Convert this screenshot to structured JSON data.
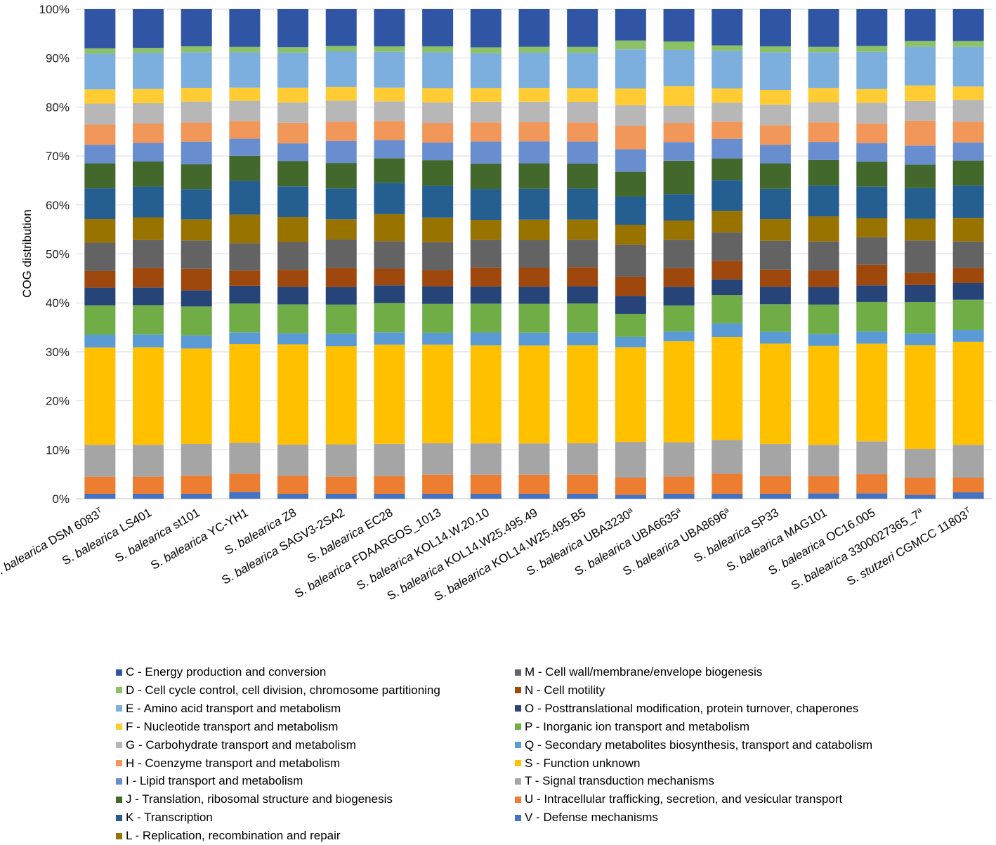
{
  "chart_data": {
    "type": "bar",
    "stacked": true,
    "percent": true,
    "ylabel": "COG distribution",
    "xlabel": "",
    "ylim": [
      0,
      100
    ],
    "yticks": [
      "0%",
      "10%",
      "20%",
      "30%",
      "40%",
      "50%",
      "60%",
      "70%",
      "80%",
      "90%",
      "100%"
    ],
    "categories": [
      {
        "genus": "S. ",
        "species": "balearica",
        "strain": " DSM 6083",
        "sup": "T"
      },
      {
        "genus": "S. ",
        "species": "balearica",
        "strain": " LS401",
        "sup": ""
      },
      {
        "genus": "S. ",
        "species": "balearica",
        "strain": " st101",
        "sup": ""
      },
      {
        "genus": "S. ",
        "species": "balearica",
        "strain": " YC-YH1",
        "sup": ""
      },
      {
        "genus": "S. ",
        "species": "balearica",
        "strain": " Z8",
        "sup": ""
      },
      {
        "genus": "S. ",
        "species": "balearica",
        "strain": " SAGV3-2SA2",
        "sup": ""
      },
      {
        "genus": "S. ",
        "species": "balearica",
        "strain": " EC28",
        "sup": ""
      },
      {
        "genus": "S. ",
        "species": "balearica",
        "strain": " FDAARGOS_1013",
        "sup": ""
      },
      {
        "genus": "S. ",
        "species": "balearica",
        "strain": " KOL14.W.20.10",
        "sup": ""
      },
      {
        "genus": "S. ",
        "species": "balearica",
        "strain": " KOL14.W25.495.49",
        "sup": ""
      },
      {
        "genus": "S. ",
        "species": "balearica",
        "strain": " KOL14.W25.495.B5",
        "sup": ""
      },
      {
        "genus": "S. ",
        "species": "balearica",
        "strain": " UBA3230",
        "sup": "a"
      },
      {
        "genus": "S. ",
        "species": "balearica",
        "strain": " UBA6635",
        "sup": "a"
      },
      {
        "genus": "S. ",
        "species": "balearica",
        "strain": " UBA8696",
        "sup": "a"
      },
      {
        "genus": "S. ",
        "species": "balearica",
        "strain": " SP33",
        "sup": ""
      },
      {
        "genus": "S. ",
        "species": "balearica",
        "strain": " MAG101",
        "sup": ""
      },
      {
        "genus": "S. ",
        "species": "balearica",
        "strain": " OC16.005",
        "sup": ""
      },
      {
        "genus": "S. ",
        "species": "balearica",
        "strain": " 3300027365_7",
        "sup": "a"
      },
      {
        "genus": "S. ",
        "species": "stutzeri",
        "strain": " CGMCC 11803",
        "sup": "T"
      }
    ],
    "series": [
      {
        "key": "V",
        "name": "V - Defense mechanisms",
        "color": "#4472C4",
        "values": [
          1.0,
          1.0,
          1.0,
          1.4,
          1.0,
          1.0,
          1.0,
          1.0,
          1.0,
          1.0,
          1.0,
          0.8,
          1.0,
          1.0,
          1.0,
          1.1,
          1.1,
          0.8,
          1.3
        ]
      },
      {
        "key": "U",
        "name": "U - Intracellular trafficking, secretion, and vesicular transport",
        "color": "#ED7D31",
        "values": [
          3.5,
          3.5,
          3.7,
          3.7,
          3.7,
          3.5,
          3.6,
          3.9,
          3.9,
          3.9,
          3.9,
          3.5,
          3.5,
          4.1,
          3.6,
          3.5,
          3.9,
          3.5,
          3.0
        ]
      },
      {
        "key": "T",
        "name": "T - Signal transduction mechanisms",
        "color": "#A5A5A5",
        "values": [
          6.5,
          6.5,
          6.5,
          6.3,
          6.4,
          6.6,
          6.6,
          6.4,
          6.4,
          6.4,
          6.4,
          7.3,
          7.0,
          6.9,
          6.6,
          6.4,
          6.7,
          5.9,
          6.7
        ]
      },
      {
        "key": "S",
        "name": "S - Function unknown",
        "color": "#FFC000",
        "values": [
          19.9,
          19.9,
          19.5,
          20.1,
          20.5,
          20.0,
          20.2,
          20.1,
          20.0,
          20.0,
          20.0,
          19.3,
          20.6,
          21.0,
          20.5,
          20.2,
          19.9,
          21.2,
          21.0
        ]
      },
      {
        "key": "Q",
        "name": "Q - Secondary metabolites biosynthesis, transport and catabolism",
        "color": "#5B9BD5",
        "values": [
          2.6,
          2.6,
          2.7,
          2.4,
          2.3,
          2.6,
          2.5,
          2.4,
          2.6,
          2.6,
          2.6,
          2.1,
          2.0,
          2.8,
          2.4,
          2.4,
          2.5,
          2.4,
          2.4
        ]
      },
      {
        "key": "P",
        "name": "P - Inorganic ion transport and metabolism",
        "color": "#70AD47",
        "values": [
          6.0,
          6.0,
          5.9,
          5.9,
          5.9,
          5.9,
          6.0,
          5.9,
          5.9,
          5.9,
          5.9,
          4.7,
          5.3,
          5.8,
          5.6,
          6.0,
          6.0,
          6.4,
          6.2
        ]
      },
      {
        "key": "O",
        "name": "O - Posttranslational modification, protein turnover, chaperones",
        "color": "#264478",
        "values": [
          3.6,
          3.6,
          3.3,
          3.6,
          3.6,
          3.6,
          3.6,
          3.6,
          3.5,
          3.5,
          3.5,
          3.7,
          3.8,
          3.2,
          3.6,
          3.6,
          3.4,
          3.5,
          3.4
        ]
      },
      {
        "key": "N",
        "name": "N - Cell motility",
        "color": "#9E480E",
        "values": [
          3.4,
          4.0,
          4.4,
          3.1,
          3.5,
          3.9,
          3.4,
          3.3,
          3.9,
          3.9,
          3.9,
          3.9,
          3.8,
          3.8,
          3.5,
          3.4,
          4.2,
          2.5,
          3.1
        ]
      },
      {
        "key": "M",
        "name": "M - Cell wall/membrane/envelope biogenesis",
        "color": "#636363",
        "values": [
          5.8,
          5.7,
          5.8,
          5.6,
          5.7,
          5.8,
          5.6,
          5.7,
          5.6,
          5.6,
          5.6,
          6.5,
          5.8,
          5.8,
          5.9,
          5.9,
          5.6,
          6.6,
          5.4
        ]
      },
      {
        "key": "L",
        "name": "L - Replication, recombination and repair",
        "color": "#997300",
        "values": [
          4.8,
          4.6,
          4.3,
          5.8,
          5.1,
          4.1,
          5.5,
          5.0,
          4.1,
          4.2,
          4.1,
          4.1,
          3.9,
          4.4,
          4.4,
          5.1,
          3.9,
          4.4,
          4.8
        ]
      },
      {
        "key": "K",
        "name": "K - Transcription",
        "color": "#255E91",
        "values": [
          6.3,
          6.3,
          6.2,
          6.9,
          6.3,
          6.3,
          6.4,
          6.5,
          6.3,
          6.3,
          6.3,
          5.8,
          5.4,
          6.3,
          6.2,
          6.3,
          6.4,
          6.3,
          6.6
        ]
      },
      {
        "key": "J",
        "name": "J - Translation, ribosomal structure and biogenesis",
        "color": "#43682B",
        "values": [
          5.1,
          5.1,
          5.1,
          5.1,
          5.2,
          5.2,
          5.0,
          5.2,
          5.2,
          5.2,
          5.1,
          5.0,
          6.8,
          4.4,
          5.2,
          5.2,
          5.1,
          4.8,
          5.1
        ]
      },
      {
        "key": "I",
        "name": "I - Lipid transport and metabolism",
        "color": "#698ED0",
        "values": [
          3.8,
          3.8,
          4.6,
          3.5,
          3.6,
          4.5,
          3.7,
          3.6,
          4.5,
          4.5,
          4.5,
          4.6,
          3.8,
          4.0,
          3.8,
          3.7,
          3.8,
          3.9,
          3.7
        ]
      },
      {
        "key": "H",
        "name": "H - Coenzyme transport and metabolism",
        "color": "#F1975A",
        "values": [
          4.1,
          4.0,
          3.9,
          3.6,
          4.2,
          3.9,
          3.9,
          4.0,
          3.9,
          3.9,
          3.9,
          4.8,
          3.9,
          3.5,
          4.0,
          4.0,
          4.0,
          5.1,
          4.2
        ]
      },
      {
        "key": "G",
        "name": "G - Carbohydrate transport and metabolism",
        "color": "#B7B7B7",
        "values": [
          4.3,
          4.1,
          4.3,
          4.1,
          4.2,
          4.3,
          4.0,
          4.2,
          4.2,
          4.2,
          4.2,
          4.2,
          3.5,
          3.9,
          4.2,
          4.1,
          4.2,
          4.0,
          4.5
        ]
      },
      {
        "key": "F",
        "name": "F - Nucleotide transport and metabolism",
        "color": "#FFCD33",
        "values": [
          2.9,
          2.9,
          2.8,
          2.7,
          3.0,
          2.8,
          2.8,
          2.9,
          2.8,
          2.8,
          2.8,
          3.4,
          4.0,
          2.9,
          3.0,
          2.9,
          2.8,
          3.2,
          2.7
        ]
      },
      {
        "key": "E",
        "name": "E - Amino acid transport and metabolism",
        "color": "#7CAFDD",
        "values": [
          7.3,
          7.4,
          7.3,
          7.2,
          7.2,
          7.3,
          7.3,
          7.3,
          7.1,
          7.2,
          7.2,
          8.0,
          7.4,
          7.7,
          7.7,
          7.3,
          7.6,
          7.9,
          8.1
        ]
      },
      {
        "key": "D",
        "name": "D - Cell cycle control, cell division, chromosome partitioning",
        "color": "#8CC168",
        "values": [
          1.1,
          1.0,
          1.2,
          1.1,
          1.1,
          1.1,
          1.1,
          1.2,
          1.2,
          1.2,
          1.2,
          1.8,
          1.7,
          1.1,
          1.2,
          1.1,
          1.2,
          1.2,
          1.2
        ]
      },
      {
        "key": "C",
        "name": "C - Energy production and conversion",
        "color": "#2F55A4",
        "values": [
          8.0,
          7.9,
          7.6,
          7.7,
          7.8,
          7.5,
          7.6,
          7.6,
          7.8,
          7.7,
          7.7,
          6.4,
          6.6,
          7.4,
          7.6,
          7.7,
          7.5,
          6.5,
          6.5
        ]
      }
    ],
    "legend": {
      "placement": "bottom",
      "left_column": [
        "C",
        "D",
        "E",
        "F",
        "G",
        "H",
        "I",
        "J",
        "K",
        "L"
      ],
      "right_column": [
        "M",
        "N",
        "O",
        "P",
        "Q",
        "S",
        "T",
        "U",
        "V"
      ]
    },
    "grid": true
  }
}
